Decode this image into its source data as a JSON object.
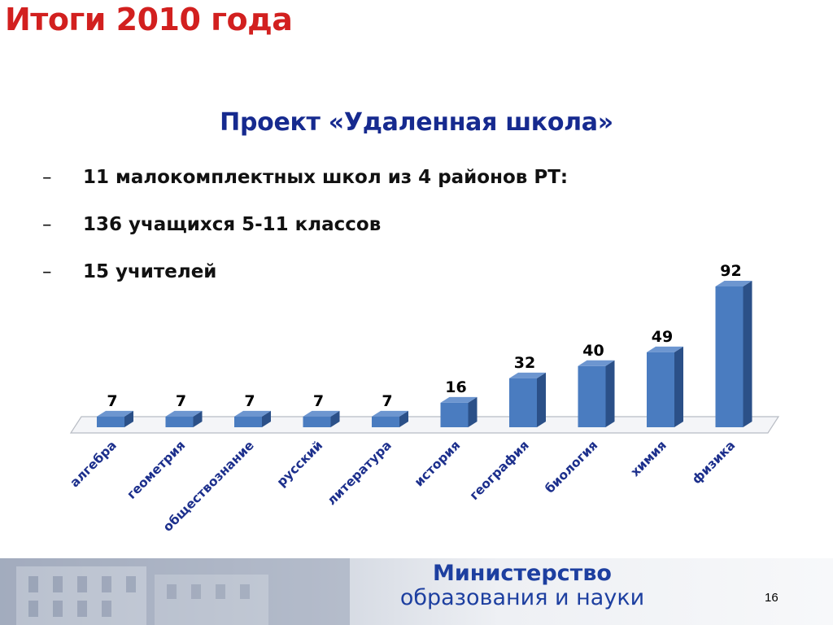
{
  "slide": {
    "title": "Итоги 2010 года",
    "subtitle": "Проект «Удаленная школа»",
    "bullets": [
      {
        "dash": "–",
        "text": "11 малокомплектных школ из 4 районов РТ:"
      },
      {
        "dash": "–",
        "text": "136 учащихся 5-11 классов"
      },
      {
        "dash": "–",
        "text": "15 учителей"
      }
    ],
    "footer": {
      "line1": "Министерство",
      "line2": "образования и науки",
      "page_number": "16"
    }
  },
  "colors": {
    "title": "#d2201f",
    "subtitle": "#162a8f",
    "bar_front": "#4a7cc0",
    "bar_side": "#2b5088",
    "bar_top": "#6d96d0",
    "ministry": "#1d3fa0"
  },
  "chart_data": {
    "type": "bar",
    "style": "3d-column",
    "title": "",
    "xlabel": "",
    "ylabel": "",
    "ylim": [
      0,
      92
    ],
    "grid": false,
    "legend": "none",
    "categories": [
      "алгебра",
      "геометрия",
      "обществознание",
      "русский",
      "литература",
      "история",
      "география",
      "биология",
      "химия",
      "физика"
    ],
    "values": [
      7,
      7,
      7,
      7,
      7,
      16,
      32,
      40,
      49,
      92
    ],
    "data_labels": [
      "7",
      "7",
      "7",
      "7",
      "7",
      "16",
      "32",
      "40",
      "49",
      "92"
    ]
  }
}
